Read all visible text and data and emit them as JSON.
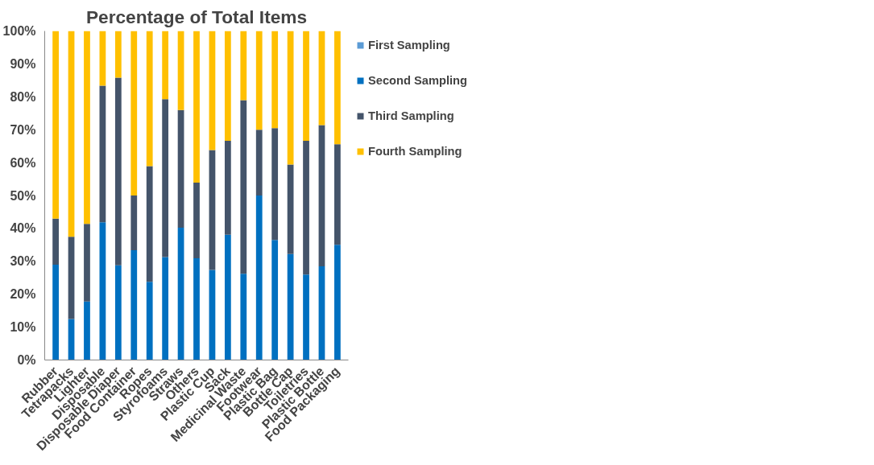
{
  "chart_data": {
    "type": "bar",
    "stacked": true,
    "title": "Percentage of Total Items",
    "categories": [
      "Rubber",
      "Tetrapacks",
      "Lighter",
      "Disposable",
      "Disposable Diaper",
      "Food Container",
      "Ropes",
      "Styrofoams",
      "Straws",
      "Others",
      "Plastic Cup",
      "Sack",
      "Medicinal Waste",
      "Footwear",
      "Plastic Bag",
      "Bottle Cap",
      "Toiletries",
      "Plastic Bottle",
      "Food Packaging"
    ],
    "series": [
      {
        "name": "First Sampling",
        "color": "#5b9bd5",
        "values": [
          0,
          0,
          0,
          0,
          0,
          0,
          0,
          0,
          0,
          0,
          0,
          0,
          0,
          0,
          0,
          0,
          0,
          0,
          0
        ]
      },
      {
        "name": "Second Sampling",
        "color": "#0070c0",
        "values": [
          29,
          12.5,
          17.8,
          41.9,
          28.8,
          33.4,
          23.8,
          31.3,
          40.2,
          30.9,
          27.4,
          38.1,
          26.2,
          50,
          36.5,
          32.2,
          26,
          28.5,
          35
        ]
      },
      {
        "name": "Third Sampling",
        "color": "#44546a",
        "values": [
          14,
          25,
          23.6,
          41.5,
          57,
          16.6,
          35.1,
          48,
          35.8,
          23,
          36.4,
          28.5,
          52.8,
          20,
          34,
          27.2,
          40.6,
          42.9,
          30.6
        ]
      },
      {
        "name": "Fourth Sampling",
        "color": "#ffc000",
        "values": [
          57,
          62.5,
          58.6,
          16.6,
          14.2,
          50,
          41.1,
          20.7,
          24,
          46.1,
          36.2,
          33.4,
          21,
          30,
          29.5,
          40.6,
          33.4,
          28.6,
          34.4
        ]
      }
    ],
    "ylim": [
      0,
      100
    ],
    "yticks": [
      {
        "value": 0,
        "label": "0%"
      },
      {
        "value": 10,
        "label": "10%"
      },
      {
        "value": 20,
        "label": "20%"
      },
      {
        "value": 30,
        "label": "30%"
      },
      {
        "value": 40,
        "label": "40%"
      },
      {
        "value": 50,
        "label": "50%"
      },
      {
        "value": 60,
        "label": "60%"
      },
      {
        "value": 70,
        "label": "70%"
      },
      {
        "value": 80,
        "label": "80%"
      },
      {
        "value": 90,
        "label": "90%"
      },
      {
        "value": 100,
        "label": "100%"
      }
    ],
    "grid": false,
    "legend": "right"
  }
}
